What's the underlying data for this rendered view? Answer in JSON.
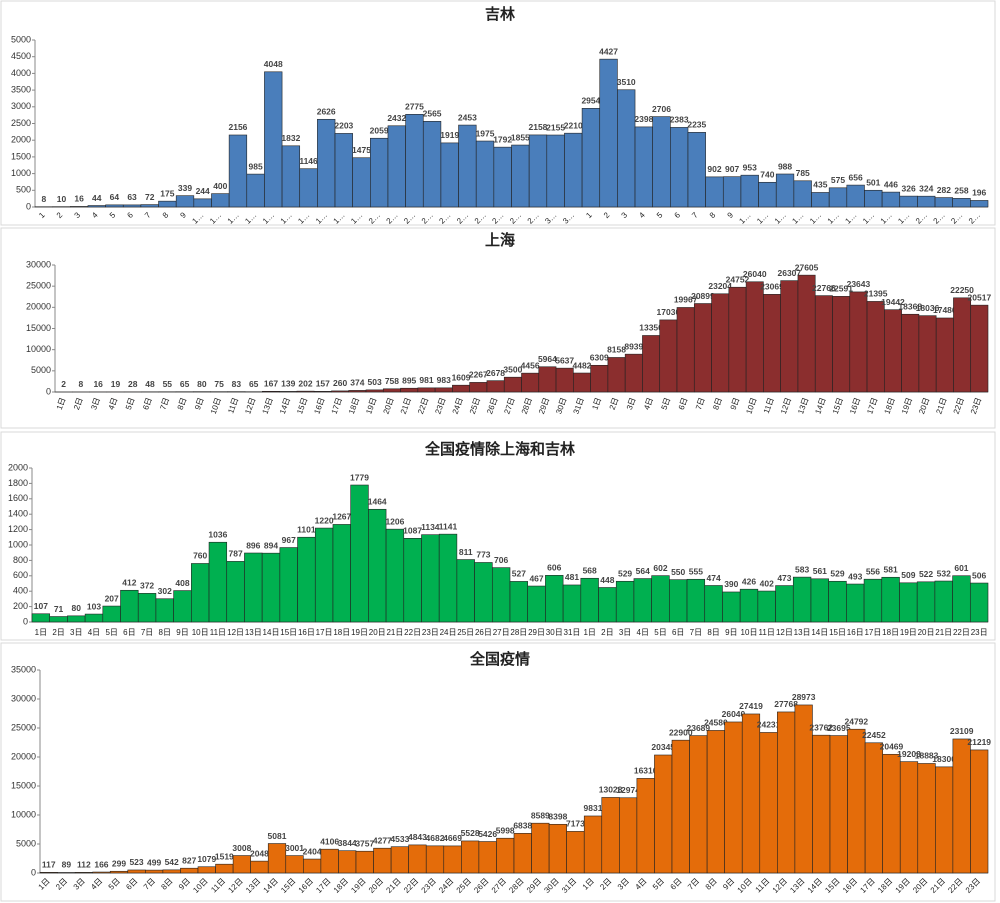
{
  "chart_data": [
    {
      "type": "bar",
      "title": "吉林",
      "color": "#4a7ebb",
      "categories": [
        "1",
        "2",
        "3",
        "4",
        "5",
        "6",
        "7",
        "8",
        "9",
        "1…",
        "1…",
        "1…",
        "1…",
        "1…",
        "1…",
        "1…",
        "1…",
        "1…",
        "1…",
        "2…",
        "2…",
        "2…",
        "2…",
        "2…",
        "2…",
        "2…",
        "2…",
        "2…",
        "2…",
        "3…",
        "3…",
        "1",
        "2",
        "3",
        "4",
        "5",
        "6",
        "7",
        "8",
        "9",
        "1…",
        "1…",
        "1…",
        "1…",
        "1…",
        "1…",
        "1…",
        "1…",
        "1…",
        "1…",
        "2…",
        "2…",
        "2…",
        "2…"
      ],
      "values": [
        8,
        10,
        16,
        44,
        64,
        63,
        72,
        175,
        339,
        244,
        400,
        2156,
        985,
        4048,
        1832,
        1146,
        2626,
        2203,
        1475,
        2059,
        2432,
        2775,
        2565,
        1919,
        2453,
        1975,
        1792,
        1855,
        2158,
        2155,
        2210,
        2954,
        4427,
        3510,
        2398,
        2706,
        2383,
        2235,
        902,
        907,
        953,
        740,
        988,
        785,
        435,
        575,
        656,
        501,
        446,
        326,
        324,
        282,
        258,
        196
      ],
      "ylim": [
        0,
        5000
      ],
      "yticks": [
        0,
        500,
        1000,
        1500,
        2000,
        2500,
        3000,
        3500,
        4000,
        4500,
        5000
      ]
    },
    {
      "type": "bar",
      "title": "上海",
      "color": "#8b2e2e",
      "categories": [
        "1日",
        "2日",
        "3日",
        "4日",
        "5日",
        "6日",
        "7日",
        "8日",
        "9日",
        "10日",
        "11日",
        "12日",
        "13日",
        "14日",
        "15日",
        "16日",
        "17日",
        "18日",
        "19日",
        "20日",
        "21日",
        "22日",
        "23日",
        "24日",
        "25日",
        "26日",
        "27日",
        "28日",
        "29日",
        "30日",
        "31日",
        "1日",
        "2日",
        "3日",
        "4日",
        "5日",
        "6日",
        "7日",
        "8日",
        "9日",
        "10日",
        "11日",
        "12日",
        "13日",
        "14日",
        "15日",
        "16日",
        "17日",
        "18日",
        "19日",
        "20日",
        "21日",
        "22日",
        "23日"
      ],
      "values": [
        2,
        8,
        16,
        19,
        28,
        48,
        55,
        65,
        80,
        75,
        83,
        65,
        167,
        139,
        202,
        157,
        260,
        374,
        503,
        758,
        895,
        981,
        983,
        1609,
        2267,
        2678,
        3500,
        4456,
        5964,
        5637,
        4482,
        6309,
        8158,
        8939,
        13350,
        17030,
        19967,
        20899,
        23204,
        24752,
        26040,
        23069,
        26307,
        27605,
        22766,
        22591,
        23643,
        21395,
        19442,
        18368,
        18036,
        17486,
        22250,
        20517
      ],
      "ylim": [
        0,
        30000
      ],
      "yticks": [
        0,
        5000,
        10000,
        15000,
        20000,
        25000,
        30000
      ]
    },
    {
      "type": "bar",
      "title": "全国疫情除上海和吉林",
      "color": "#00b050",
      "categories": [
        "1日",
        "2日",
        "3日",
        "4日",
        "5日",
        "6日",
        "7日",
        "8日",
        "9日",
        "10日",
        "11日",
        "12日",
        "13日",
        "14日",
        "15日",
        "16日",
        "17日",
        "18日",
        "19日",
        "20日",
        "21日",
        "22日",
        "23日",
        "24日",
        "25日",
        "26日",
        "27日",
        "28日",
        "29日",
        "30日",
        "31日",
        "1日",
        "2日",
        "3日",
        "4日",
        "5日",
        "6日",
        "7日",
        "8日",
        "9日",
        "10日",
        "11日",
        "12日",
        "13日",
        "14日",
        "15日",
        "16日",
        "17日",
        "18日",
        "19日",
        "20日",
        "21日",
        "22日",
        "23日"
      ],
      "values": [
        107,
        71,
        80,
        103,
        207,
        412,
        372,
        302,
        408,
        760,
        1036,
        787,
        896,
        894,
        967,
        1101,
        1220,
        1267,
        1779,
        1464,
        1206,
        1087,
        1134,
        1141,
        811,
        773,
        706,
        527,
        467,
        606,
        481,
        568,
        448,
        529,
        564,
        602,
        550,
        555,
        474,
        390,
        426,
        402,
        473,
        583,
        561,
        529,
        493,
        556,
        581,
        509,
        522,
        532,
        601,
        506
      ],
      "ylim": [
        0,
        2000
      ],
      "yticks": [
        0,
        200,
        400,
        600,
        800,
        1000,
        1200,
        1400,
        1600,
        1800,
        2000
      ]
    },
    {
      "type": "bar",
      "title": "全国疫情",
      "color": "#e46c0a",
      "categories": [
        "1日",
        "2日",
        "3日",
        "4日",
        "5日",
        "6日",
        "7日",
        "8日",
        "9日",
        "10日",
        "11日",
        "12日",
        "13日",
        "14日",
        "15日",
        "16日",
        "17日",
        "18日",
        "19日",
        "20日",
        "21日",
        "22日",
        "23日",
        "24日",
        "25日",
        "26日",
        "27日",
        "28日",
        "29日",
        "30日",
        "31日",
        "1日",
        "2日",
        "3日",
        "4日",
        "5日",
        "6日",
        "7日",
        "8日",
        "9日",
        "10日",
        "11日",
        "12日",
        "13日",
        "14日",
        "15日",
        "16日",
        "17日",
        "18日",
        "19日",
        "20日",
        "21日",
        "22日",
        "23日"
      ],
      "values": [
        117,
        89,
        112,
        166,
        299,
        523,
        499,
        542,
        827,
        1079,
        1519,
        3008,
        2048,
        5081,
        3001,
        2404,
        4106,
        3844,
        3757,
        4277,
        4533,
        4843,
        4682,
        4669,
        5528,
        5426,
        5998,
        6838,
        8589,
        8398,
        7173,
        9831,
        13028,
        12974,
        16310,
        20345,
        22900,
        23689,
        24580,
        26040,
        27419,
        24231,
        27768,
        28973,
        23762,
        23695,
        24792,
        22452,
        20469,
        19203,
        18883,
        18300,
        23109,
        21219
      ],
      "ylim": [
        0,
        35000
      ],
      "yticks": [
        0,
        5000,
        10000,
        15000,
        20000,
        25000,
        30000,
        35000
      ]
    }
  ]
}
